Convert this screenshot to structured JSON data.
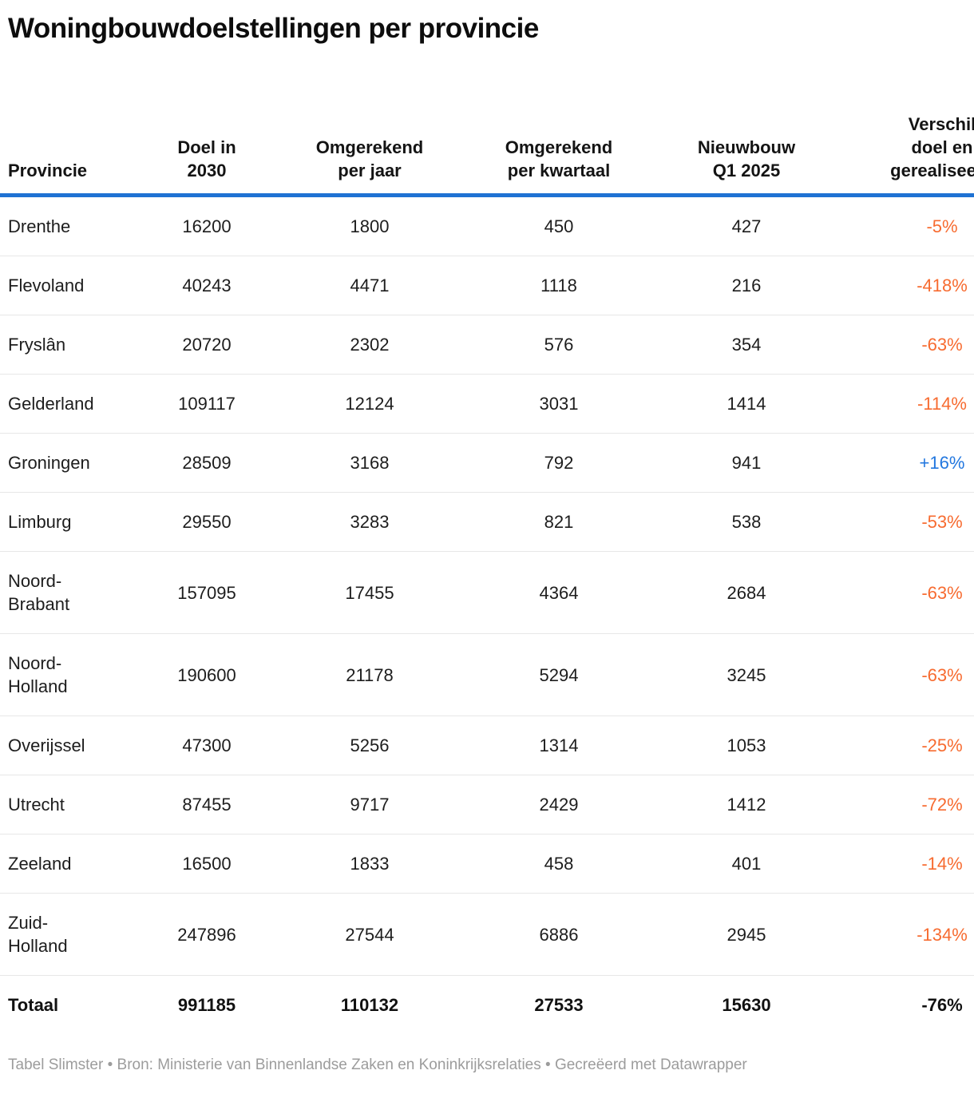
{
  "title": "Woningbouwdoelstellingen per provincie",
  "colors": {
    "negative_value": "#f76b30",
    "positive_value": "#2277df",
    "header_rule_blue": "#1f72d3",
    "row_separator": "#e7e7e7",
    "footer_gray": "#9c9c9c"
  },
  "table": {
    "columns": [
      {
        "key": "province",
        "label": "Provincie"
      },
      {
        "key": "doel_2030",
        "label": "Doel in\n2030"
      },
      {
        "key": "per_jaar",
        "label": "Omgerekend\nper jaar"
      },
      {
        "key": "per_kwartaal",
        "label": "Omgerekend\nper kwartaal"
      },
      {
        "key": "nieuwbouw_q1",
        "label": "Nieuwbouw\nQ1 2025"
      },
      {
        "key": "verschil",
        "label": "Verschil\ndoel en\ngerealiseerd"
      }
    ],
    "rows": [
      {
        "province": "Drenthe",
        "doel_2030": "16200",
        "per_jaar": "1800",
        "per_kwartaal": "450",
        "nieuwbouw_q1": "427",
        "verschil": "-5%",
        "trend": "negative"
      },
      {
        "province": "Flevoland",
        "doel_2030": "40243",
        "per_jaar": "4471",
        "per_kwartaal": "1118",
        "nieuwbouw_q1": "216",
        "verschil": "-418%",
        "trend": "negative"
      },
      {
        "province": "Fryslân",
        "doel_2030": "20720",
        "per_jaar": "2302",
        "per_kwartaal": "576",
        "nieuwbouw_q1": "354",
        "verschil": "-63%",
        "trend": "negative"
      },
      {
        "province": "Gelderland",
        "doel_2030": "109117",
        "per_jaar": "12124",
        "per_kwartaal": "3031",
        "nieuwbouw_q1": "1414",
        "verschil": "-114%",
        "trend": "negative"
      },
      {
        "province": "Groningen",
        "doel_2030": "28509",
        "per_jaar": "3168",
        "per_kwartaal": "792",
        "nieuwbouw_q1": "941",
        "verschil": "+16%",
        "trend": "positive"
      },
      {
        "province": "Limburg",
        "doel_2030": "29550",
        "per_jaar": "3283",
        "per_kwartaal": "821",
        "nieuwbouw_q1": "538",
        "verschil": "-53%",
        "trend": "negative"
      },
      {
        "province": "Noord-\nBrabant",
        "doel_2030": "157095",
        "per_jaar": "17455",
        "per_kwartaal": "4364",
        "nieuwbouw_q1": "2684",
        "verschil": "-63%",
        "trend": "negative"
      },
      {
        "province": "Noord-\nHolland",
        "doel_2030": "190600",
        "per_jaar": "21178",
        "per_kwartaal": "5294",
        "nieuwbouw_q1": "3245",
        "verschil": "-63%",
        "trend": "negative"
      },
      {
        "province": "Overijssel",
        "doel_2030": "47300",
        "per_jaar": "5256",
        "per_kwartaal": "1314",
        "nieuwbouw_q1": "1053",
        "verschil": "-25%",
        "trend": "negative"
      },
      {
        "province": "Utrecht",
        "doel_2030": "87455",
        "per_jaar": "9717",
        "per_kwartaal": "2429",
        "nieuwbouw_q1": "1412",
        "verschil": "-72%",
        "trend": "negative"
      },
      {
        "province": "Zeeland",
        "doel_2030": "16500",
        "per_jaar": "1833",
        "per_kwartaal": "458",
        "nieuwbouw_q1": "401",
        "verschil": "-14%",
        "trend": "negative"
      },
      {
        "province": "Zuid-\nHolland",
        "doel_2030": "247896",
        "per_jaar": "27544",
        "per_kwartaal": "6886",
        "nieuwbouw_q1": "2945",
        "verschil": "-134%",
        "trend": "negative"
      }
    ],
    "total": {
      "province": "Totaal",
      "doel_2030": "991185",
      "per_jaar": "110132",
      "per_kwartaal": "27533",
      "nieuwbouw_q1": "15630",
      "verschil": "-76%",
      "trend": "negative"
    }
  },
  "footer": "Tabel Slimster • Bron: Ministerie van Binnenlandse Zaken en Koninkrijksrelaties • Gecreëerd met Datawrapper"
}
